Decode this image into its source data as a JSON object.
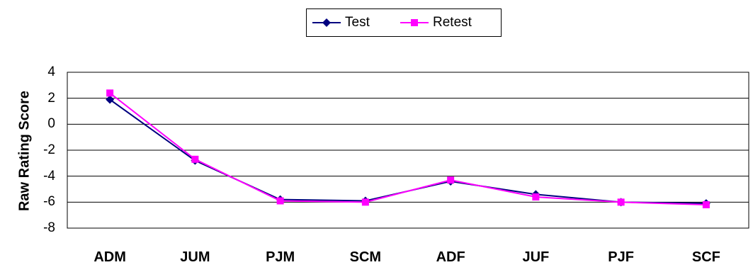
{
  "chart_data": {
    "type": "line",
    "title": "",
    "xlabel": "",
    "ylabel": "Raw Rating Score",
    "categories": [
      "ADM",
      "JUM",
      "PJM",
      "SCM",
      "ADF",
      "JUF",
      "PJF",
      "SCF"
    ],
    "ylim": [
      -8,
      4
    ],
    "yticks": [
      4,
      2,
      0,
      -2,
      -4,
      -6,
      -8
    ],
    "grid": true,
    "legend": "top-center",
    "series": [
      {
        "name": "Test",
        "color": "#000080",
        "marker": "diamond",
        "values": [
          1.9,
          -2.8,
          -5.8,
          -5.9,
          -4.4,
          -5.4,
          -6.0,
          -6.1
        ]
      },
      {
        "name": "Retest",
        "color": "#FF00FF",
        "marker": "square",
        "values": [
          2.4,
          -2.7,
          -5.9,
          -6.0,
          -4.3,
          -5.6,
          -6.0,
          -6.2
        ]
      }
    ]
  }
}
